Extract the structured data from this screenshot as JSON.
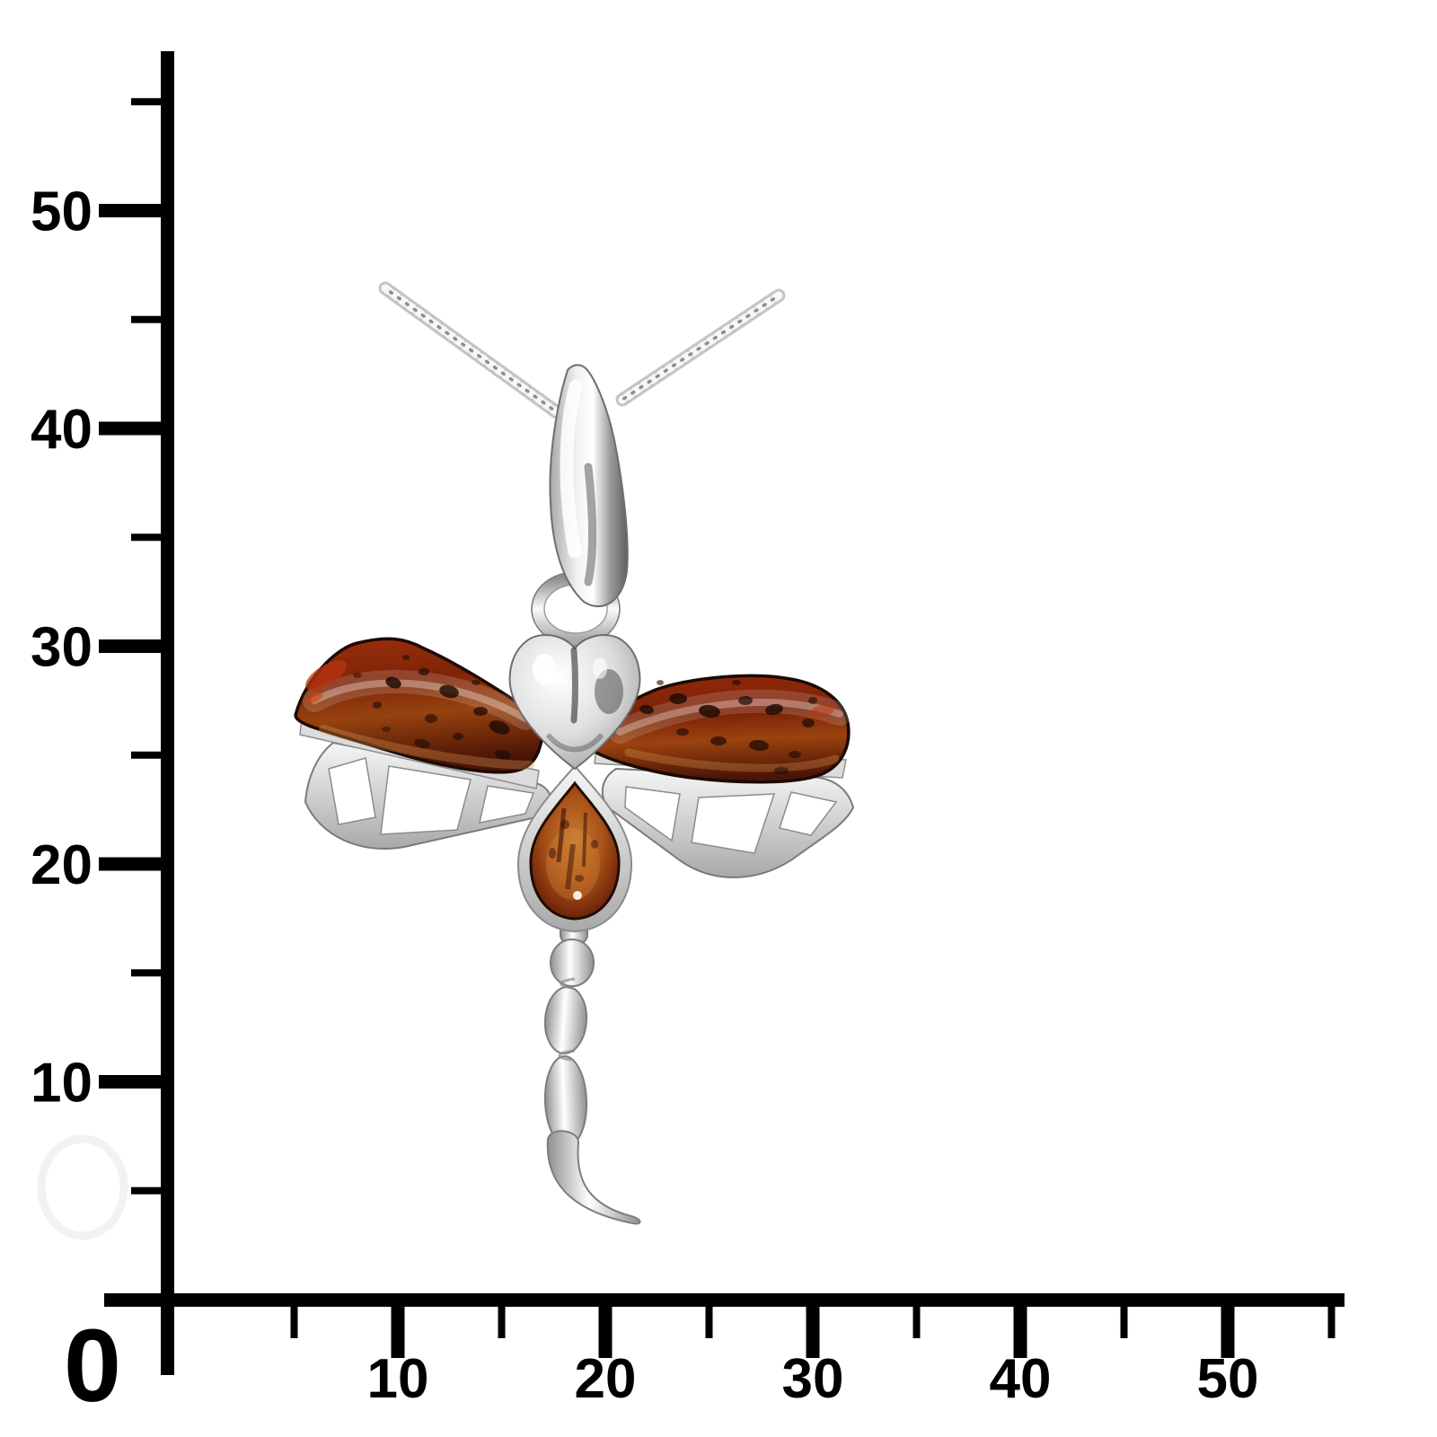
{
  "ruler": {
    "origin_label": "0",
    "x_axis": {
      "major_ticks": [
        10,
        20,
        30,
        40,
        50
      ],
      "minor_ticks": [
        5,
        15,
        25,
        35,
        45,
        55
      ]
    },
    "y_axis": {
      "major_ticks": [
        10,
        20,
        30,
        40,
        50
      ],
      "minor_ticks": [
        5,
        15,
        25,
        35,
        45,
        55
      ]
    }
  },
  "colors": {
    "background": "#ffffff",
    "axis": "#000000",
    "chain_silver": "#c6c6c6",
    "metal_silver": "#e9e9e9",
    "metal_shadow": "#6f6f6f",
    "amber_main": "#8a3010",
    "amber_highlight": "#c06a28",
    "amber_dark": "#3a1006",
    "watermark": "#f2f2f2"
  }
}
